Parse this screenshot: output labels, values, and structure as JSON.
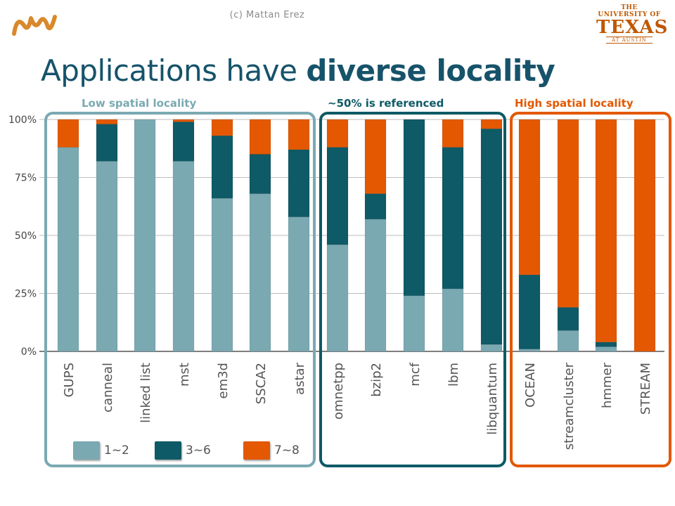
{
  "header": {
    "copyright": "(c) Mattan Erez",
    "logo_right": {
      "line1": "THE UNIVERSITY OF",
      "line2": "TEXAS",
      "line3": "AT AUSTIN"
    },
    "title_prefix": "Applications have ",
    "title_bold": "diverse locality"
  },
  "groups": [
    {
      "label": "Low spatial locality",
      "color": "#7aa9b2"
    },
    {
      "label": "~50% is referenced",
      "color": "#0e5a66"
    },
    {
      "label": "High spatial locality",
      "color": "#e35800"
    }
  ],
  "legend": [
    {
      "label": "1~2",
      "color": "#7aa9b2"
    },
    {
      "label": "3~6",
      "color": "#0e5a66"
    },
    {
      "label": "7~8",
      "color": "#e35800"
    }
  ],
  "chart_data": {
    "type": "bar",
    "stacked": true,
    "percent": true,
    "ylim": [
      0,
      100
    ],
    "yticks": [
      "0%",
      "25%",
      "50%",
      "75%",
      "100%"
    ],
    "grid": true,
    "categories": [
      "GUPS",
      "canneal",
      "linked list",
      "mst",
      "em3d",
      "SSCA2",
      "astar",
      "omnetpp",
      "bzip2",
      "mcf",
      "lbm",
      "libquantum",
      "OCEAN",
      "streamcluster",
      "hmmer",
      "STREAM"
    ],
    "series": [
      {
        "name": "1~2",
        "color": "#7aa9b2",
        "values": [
          88,
          82,
          100,
          82,
          66,
          68,
          58,
          46,
          57,
          24,
          27,
          3,
          1,
          9,
          2,
          0
        ]
      },
      {
        "name": "3~6",
        "color": "#0e5a66",
        "values": [
          0,
          16,
          0,
          17,
          27,
          17,
          29,
          42,
          11,
          76,
          61,
          93,
          32,
          10,
          2,
          0
        ]
      },
      {
        "name": "7~8",
        "color": "#e35800",
        "values": [
          12,
          2,
          0,
          1,
          7,
          15,
          13,
          12,
          32,
          0,
          12,
          4,
          67,
          81,
          96,
          100
        ]
      }
    ]
  }
}
